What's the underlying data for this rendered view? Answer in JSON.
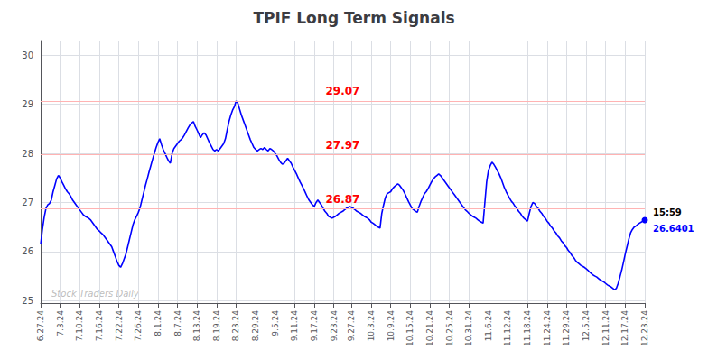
{
  "chart_data": {
    "type": "line",
    "title": "TPIF Long Term Signals",
    "categories": [
      "6.27.24",
      null,
      null,
      null,
      null,
      null,
      null,
      null,
      null,
      null,
      null,
      "7.3.24",
      null,
      null,
      null,
      null,
      null,
      null,
      null,
      null,
      null,
      null,
      "7.10.24",
      null,
      null,
      null,
      null,
      null,
      null,
      null,
      null,
      null,
      null,
      "7.16.24",
      null,
      null,
      null,
      null,
      null,
      null,
      null,
      null,
      null,
      null,
      "7.22.24",
      null,
      null,
      null,
      null,
      null,
      null,
      null,
      null,
      null,
      null,
      "7.26.24",
      null,
      null,
      null,
      null,
      null,
      null,
      null,
      null,
      null,
      null,
      "8.1.24",
      null,
      null,
      null,
      null,
      null,
      null,
      null,
      null,
      null,
      null,
      "8.7.24",
      null,
      null,
      null,
      null,
      null,
      null,
      null,
      null,
      null,
      null,
      "8.13.24",
      null,
      null,
      null,
      null,
      null,
      null,
      null,
      null,
      null,
      null,
      "8.19.24",
      null,
      null,
      null,
      null,
      null,
      null,
      null,
      null,
      null,
      null,
      "8.23.24",
      null,
      null,
      null,
      null,
      null,
      null,
      null,
      null,
      null,
      null,
      "8.29.24",
      null,
      null,
      null,
      null,
      null,
      null,
      null,
      null,
      null,
      null,
      "9.5.24",
      null,
      null,
      null,
      null,
      null,
      null,
      null,
      null,
      null,
      null,
      "9.11.24",
      null,
      null,
      null,
      null,
      null,
      null,
      null,
      null,
      null,
      null,
      "9.17.24",
      null,
      null,
      null,
      null,
      null,
      null,
      null,
      null,
      null,
      null,
      "9.23.24",
      null,
      null,
      null,
      null,
      null,
      null,
      null,
      null,
      null,
      "9.27.24",
      null,
      null,
      null,
      null,
      null,
      null,
      null,
      null,
      null,
      null,
      "10.3.24",
      null,
      null,
      null,
      null,
      null,
      null,
      null,
      null,
      null,
      null,
      "10.9.24",
      null,
      null,
      null,
      null,
      null,
      null,
      null,
      null,
      null,
      null,
      "10.15.24",
      null,
      null,
      null,
      null,
      null,
      null,
      null,
      null,
      null,
      null,
      "10.21.24",
      null,
      null,
      null,
      null,
      null,
      null,
      null,
      null,
      null,
      null,
      "10.25.24",
      null,
      null,
      null,
      null,
      null,
      null,
      null,
      null,
      null,
      null,
      "10.31.24",
      null,
      null,
      null,
      null,
      null,
      null,
      null,
      null,
      null,
      null,
      "11.6.24",
      null,
      null,
      null,
      null,
      null,
      null,
      null,
      null,
      null,
      null,
      "11.12.24",
      null,
      null,
      null,
      null,
      null,
      null,
      null,
      null,
      null,
      null,
      "11.18.24",
      null,
      null,
      null,
      null,
      null,
      null,
      null,
      null,
      null,
      null,
      "11.24.24",
      null,
      null,
      null,
      null,
      null,
      null,
      null,
      null,
      null,
      null,
      "11.29.24",
      null,
      null,
      null,
      null,
      null,
      null,
      null,
      null,
      null,
      null,
      "12.5.24",
      null,
      null,
      null,
      null,
      null,
      null,
      null,
      null,
      null,
      null,
      "12.11.24",
      null,
      null,
      null,
      null,
      null,
      null,
      null,
      null,
      null,
      null,
      "12.17.24",
      null,
      null,
      null,
      null,
      null,
      null,
      null,
      null,
      null,
      null,
      "12.23.24"
    ],
    "series": [
      {
        "name": "TPIF",
        "color": "blue",
        "values": [
          26.15,
          26.45,
          26.7,
          26.88,
          26.95,
          26.98,
          27.05,
          27.22,
          27.35,
          27.48,
          27.55,
          27.5,
          27.42,
          27.35,
          27.28,
          27.22,
          27.18,
          27.12,
          27.05,
          27.0,
          26.95,
          26.9,
          26.85,
          26.8,
          26.75,
          26.72,
          26.7,
          26.68,
          26.65,
          26.6,
          26.55,
          26.5,
          26.45,
          26.42,
          26.38,
          26.35,
          26.3,
          26.25,
          26.2,
          26.15,
          26.1,
          26.0,
          25.9,
          25.8,
          25.72,
          25.68,
          25.75,
          25.85,
          25.95,
          26.1,
          26.25,
          26.4,
          26.55,
          26.65,
          26.72,
          26.8,
          26.9,
          27.05,
          27.2,
          27.35,
          27.48,
          27.62,
          27.75,
          27.88,
          28.0,
          28.12,
          28.22,
          28.3,
          28.18,
          28.08,
          28.0,
          27.92,
          27.85,
          27.8,
          28.0,
          28.1,
          28.15,
          28.2,
          28.25,
          28.28,
          28.32,
          28.38,
          28.45,
          28.52,
          28.58,
          28.62,
          28.65,
          28.55,
          28.48,
          28.4,
          28.32,
          28.38,
          28.42,
          28.38,
          28.3,
          28.22,
          28.15,
          28.08,
          28.05,
          28.08,
          28.05,
          28.1,
          28.15,
          28.2,
          28.3,
          28.48,
          28.65,
          28.78,
          28.88,
          28.95,
          29.07,
          29.02,
          28.9,
          28.78,
          28.68,
          28.58,
          28.48,
          28.38,
          28.28,
          28.2,
          28.12,
          28.08,
          28.05,
          28.08,
          28.1,
          28.08,
          28.12,
          28.08,
          28.05,
          28.1,
          28.08,
          28.05,
          28.0,
          27.95,
          27.88,
          27.82,
          27.78,
          27.8,
          27.85,
          27.9,
          27.85,
          27.8,
          27.72,
          27.65,
          27.58,
          27.5,
          27.42,
          27.35,
          27.28,
          27.2,
          27.12,
          27.05,
          27.0,
          26.95,
          26.92,
          27.0,
          27.05,
          27.0,
          26.95,
          26.88,
          26.82,
          26.78,
          26.72,
          26.7,
          26.68,
          26.7,
          26.72,
          26.75,
          26.78,
          26.8,
          26.82,
          26.85,
          26.88,
          26.9,
          26.92,
          26.9,
          26.88,
          26.85,
          26.82,
          26.8,
          26.78,
          26.75,
          26.72,
          26.7,
          26.68,
          26.65,
          26.6,
          26.58,
          26.55,
          26.52,
          26.5,
          26.48,
          26.78,
          26.95,
          27.1,
          27.18,
          27.2,
          27.22,
          27.28,
          27.32,
          27.35,
          27.38,
          27.35,
          27.3,
          27.25,
          27.18,
          27.1,
          27.02,
          26.95,
          26.88,
          26.85,
          26.82,
          26.8,
          26.92,
          27.02,
          27.1,
          27.18,
          27.22,
          27.28,
          27.35,
          27.42,
          27.48,
          27.52,
          27.55,
          27.58,
          27.55,
          27.5,
          27.45,
          27.4,
          27.35,
          27.3,
          27.25,
          27.2,
          27.15,
          27.1,
          27.05,
          27.0,
          26.95,
          26.9,
          26.85,
          26.82,
          26.78,
          26.75,
          26.72,
          26.7,
          26.68,
          26.65,
          26.62,
          26.6,
          26.58,
          27.0,
          27.42,
          27.65,
          27.75,
          27.82,
          27.78,
          27.72,
          27.65,
          27.58,
          27.5,
          27.4,
          27.3,
          27.22,
          27.15,
          27.08,
          27.02,
          26.98,
          26.92,
          26.88,
          26.82,
          26.78,
          26.72,
          26.68,
          26.65,
          26.62,
          26.78,
          26.92,
          27.0,
          26.98,
          26.92,
          26.88,
          26.82,
          26.78,
          26.72,
          26.68,
          26.62,
          26.58,
          26.52,
          26.48,
          26.42,
          26.38,
          26.32,
          26.28,
          26.22,
          26.18,
          26.12,
          26.08,
          26.02,
          25.98,
          25.92,
          25.88,
          25.82,
          25.78,
          25.75,
          25.72,
          25.7,
          25.68,
          25.65,
          25.62,
          25.58,
          25.55,
          25.52,
          25.5,
          25.48,
          25.45,
          25.42,
          25.4,
          25.38,
          25.35,
          25.32,
          25.3,
          25.28,
          25.25,
          25.22,
          25.25,
          25.35,
          25.48,
          25.62,
          25.78,
          25.95,
          26.1,
          26.25,
          26.38,
          26.45,
          26.5,
          26.52,
          26.55,
          26.58,
          26.6,
          26.62,
          26.64
        ]
      }
    ],
    "hlines": [
      {
        "y": 29.07,
        "label": "29.07",
        "color": "#ffb3b3",
        "label_color": "red"
      },
      {
        "y": 27.97,
        "label": "27.97",
        "color": "#ffb3b3",
        "label_color": "red"
      },
      {
        "y": 26.87,
        "label": "26.87",
        "color": "#ffb3b3",
        "label_color": "red"
      }
    ],
    "end_labels": [
      {
        "text": "15:59",
        "color": "black"
      },
      {
        "text": "26.6401",
        "color": "blue"
      }
    ],
    "watermark": "Stock Traders Daily",
    "ylim": [
      24.95,
      30.3
    ],
    "yticks": [
      25,
      26,
      27,
      28,
      29,
      30
    ],
    "grid": true
  }
}
